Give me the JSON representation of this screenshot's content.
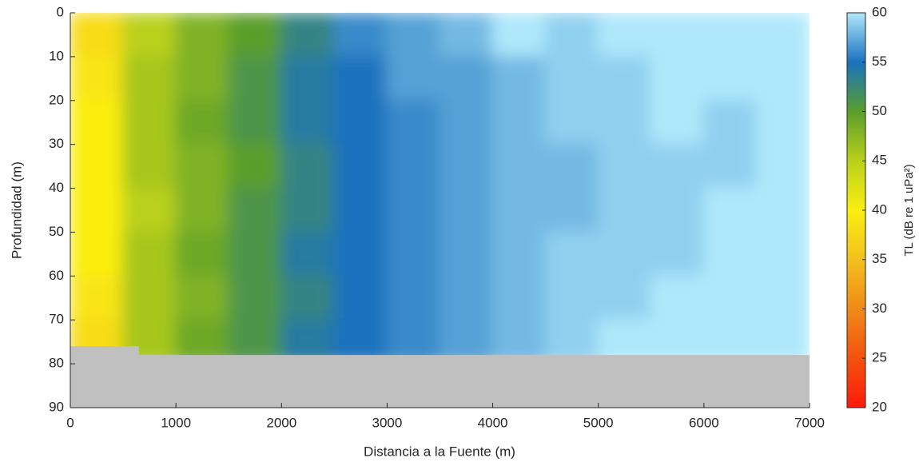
{
  "chart_data": {
    "type": "heatmap",
    "xlabel": "Distancia a la Fuente (m)",
    "ylabel": "Profundidad (m)",
    "colorbar_label": "TL (dB re 1 uPa²)",
    "x": [
      250,
      750,
      1250,
      1750,
      2250,
      2750,
      3250,
      3750,
      4250,
      4750,
      5250,
      5750,
      6250,
      6750
    ],
    "y": [
      5,
      15,
      25,
      35,
      45,
      55,
      65,
      75
    ],
    "z": [
      [
        38,
        45,
        48,
        50,
        53,
        56,
        57,
        58,
        60,
        59,
        60,
        60,
        60,
        60
      ],
      [
        39,
        46,
        48,
        51,
        54,
        55,
        57,
        57,
        58,
        59,
        59,
        60,
        60,
        60
      ],
      [
        40,
        46,
        49,
        51,
        54,
        55,
        56,
        57,
        58,
        59,
        59,
        60,
        59,
        60
      ],
      [
        40,
        46,
        48,
        50,
        53,
        55,
        56,
        57,
        58,
        58,
        59,
        59,
        59,
        60
      ],
      [
        40,
        45,
        48,
        51,
        53,
        55,
        56,
        57,
        58,
        58,
        59,
        59,
        60,
        60
      ],
      [
        40,
        46,
        49,
        51,
        54,
        55,
        56,
        57,
        58,
        59,
        59,
        59,
        60,
        60
      ],
      [
        39,
        46,
        48,
        51,
        53,
        55,
        56,
        57,
        58,
        59,
        59,
        60,
        60,
        60
      ],
      [
        38,
        46,
        49,
        51,
        54,
        55,
        56,
        57,
        58,
        59,
        60,
        60,
        60,
        60
      ]
    ],
    "seabed": {
      "x": [
        0,
        650,
        650,
        7000
      ],
      "depth": [
        76,
        76,
        78,
        78
      ],
      "color": "#c0c0c0"
    },
    "xlim": [
      0,
      7000
    ],
    "xticks": [
      0,
      1000,
      2000,
      3000,
      4000,
      5000,
      6000,
      7000
    ],
    "ylim": [
      0,
      90
    ],
    "yticks": [
      0,
      10,
      20,
      30,
      40,
      50,
      60,
      70,
      80,
      90
    ],
    "y_reversed": true,
    "clim": [
      20,
      60
    ],
    "cticks": [
      20,
      25,
      30,
      35,
      40,
      45,
      50,
      55,
      60
    ],
    "colormap": [
      "#ff1a0a",
      "#f4520f",
      "#f08a17",
      "#f2c01e",
      "#fbee10",
      "#b9d01a",
      "#5a9e2c",
      "#1a72be",
      "#aee8fb"
    ]
  }
}
